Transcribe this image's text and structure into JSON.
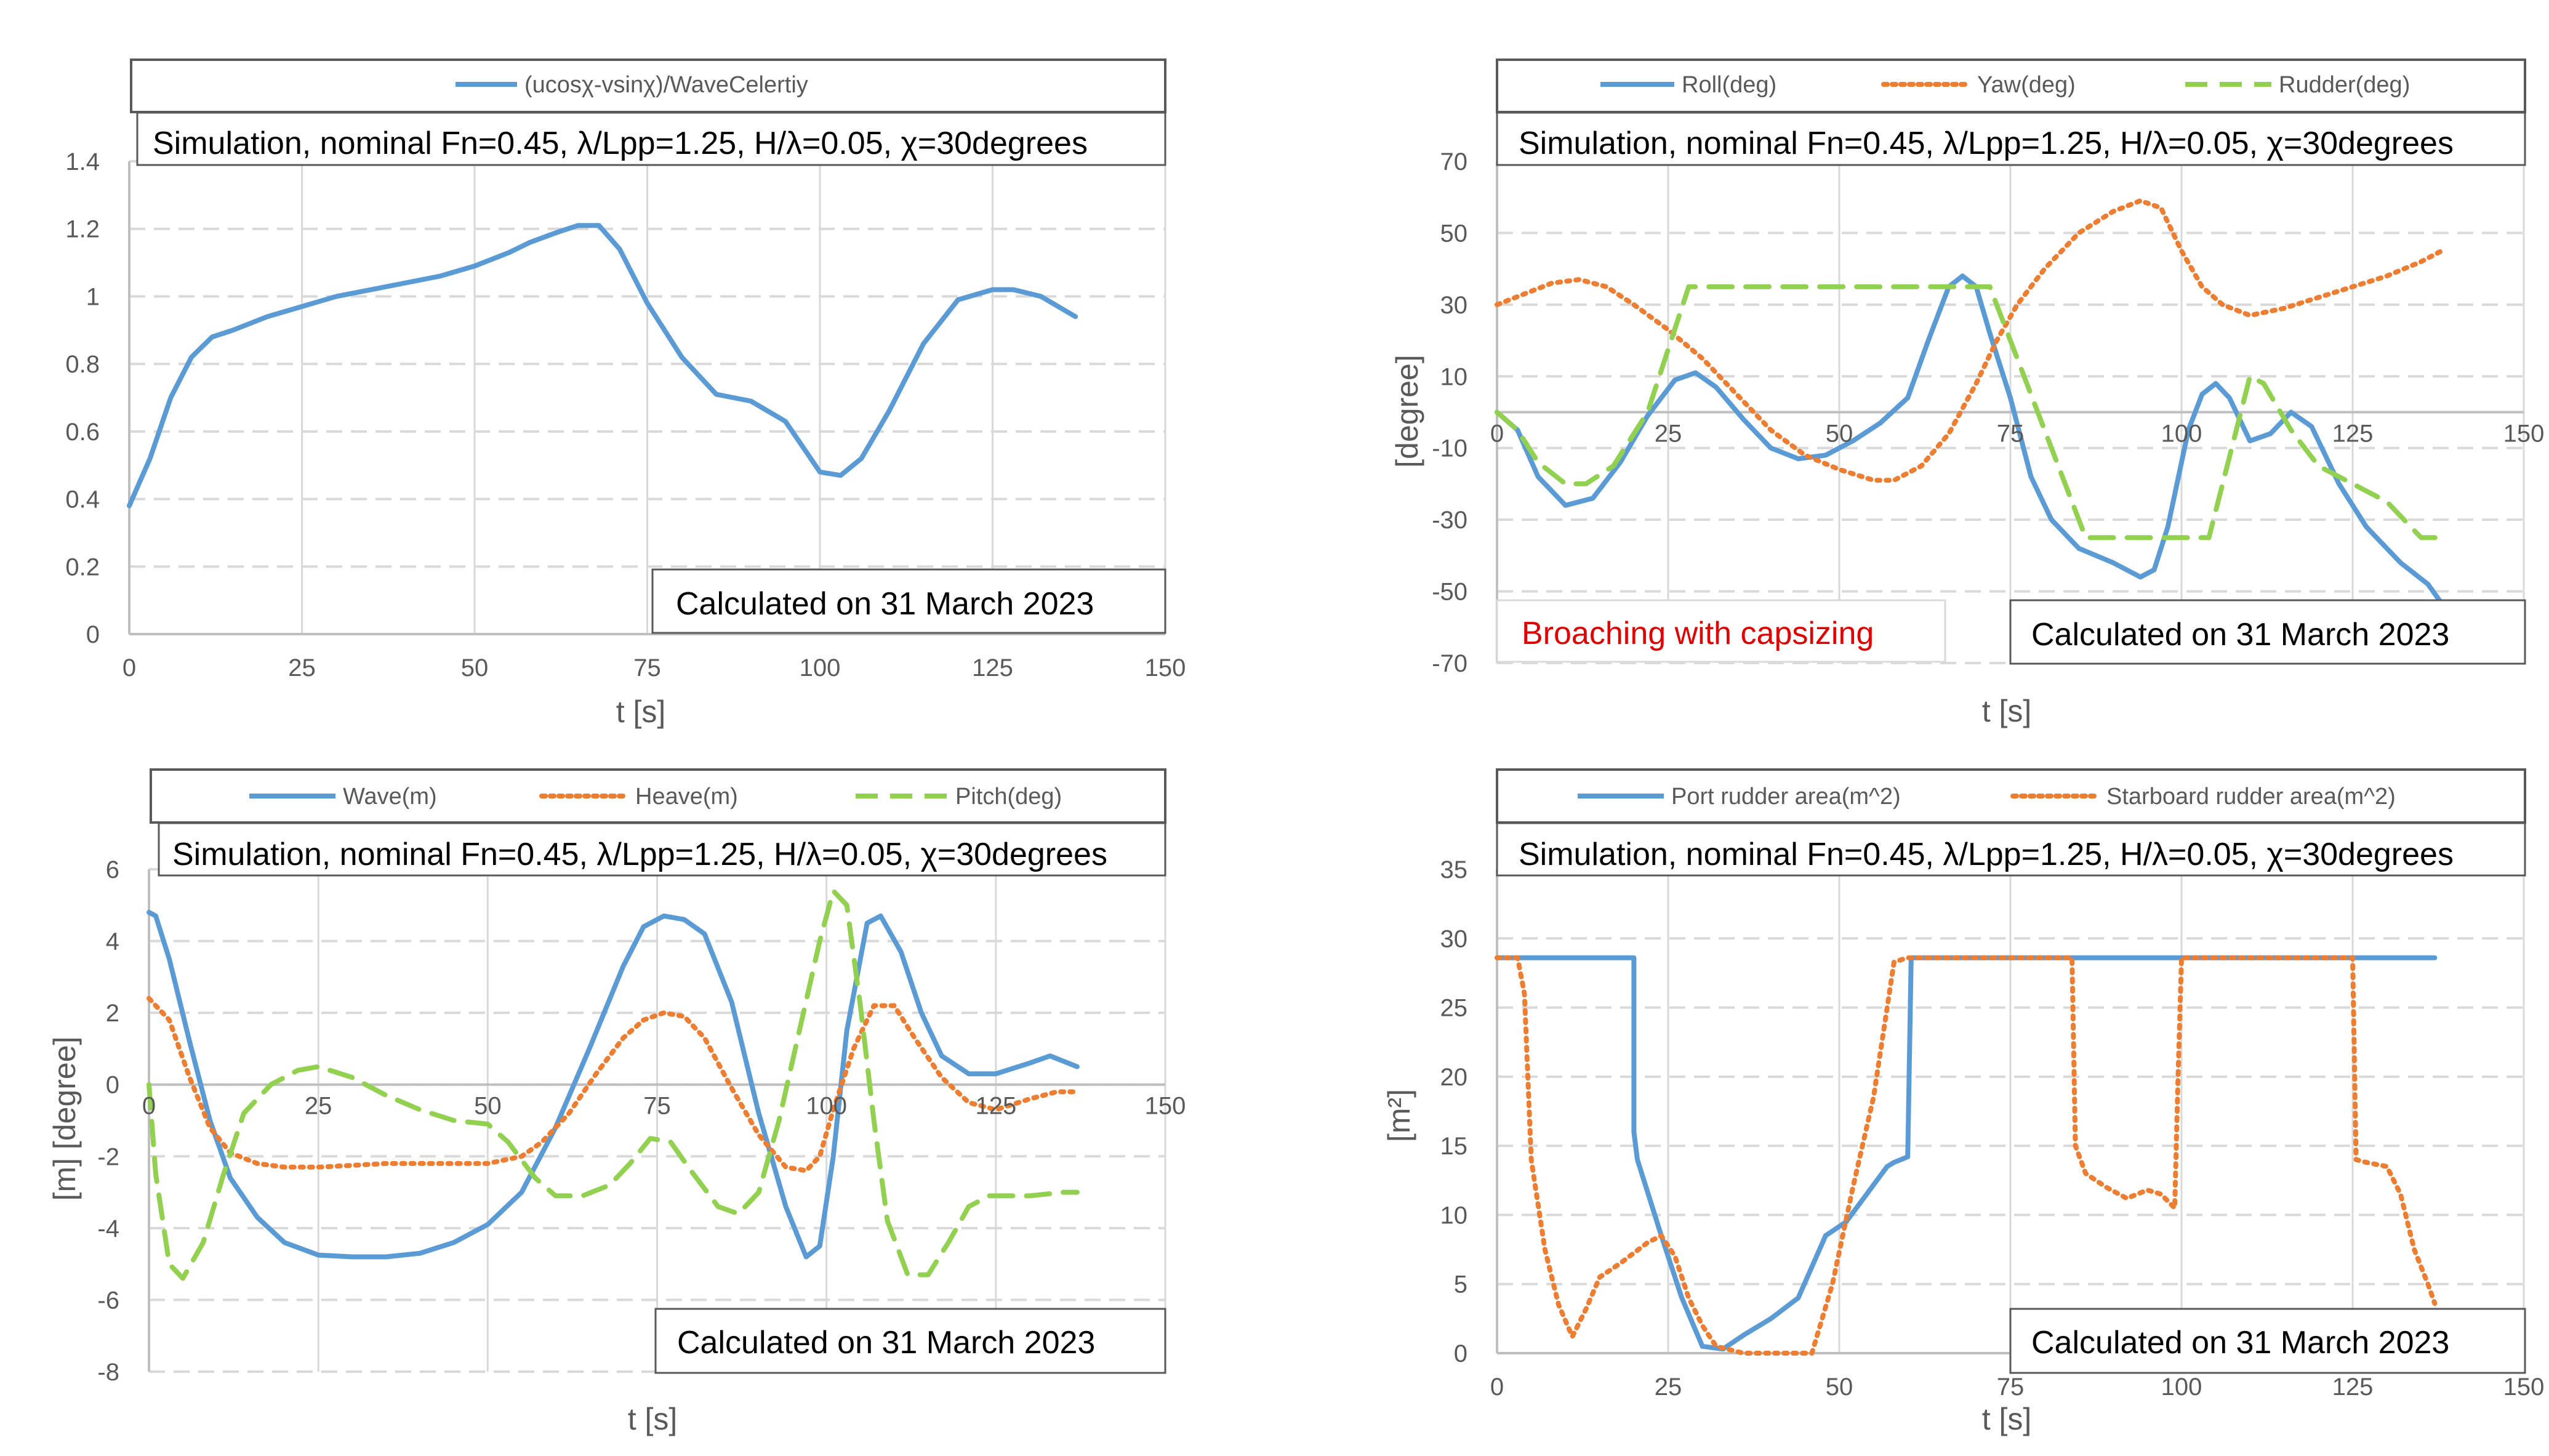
{
  "chart_data": [
    {
      "id": "c1",
      "type": "line",
      "title": "",
      "subtitle": "Simulation, nominal Fn=0.45, λ/Lpp=1.25, H/λ=0.05, χ=30degrees",
      "xlabel": "t [s]",
      "ylabel": "",
      "xlim": [
        0,
        150
      ],
      "ylim": [
        0,
        1.4
      ],
      "xticks": [
        0,
        25,
        50,
        75,
        100,
        125,
        150
      ],
      "yticks": [
        0,
        0.2,
        0.4,
        0.6,
        0.8,
        1,
        1.2,
        1.4
      ],
      "ytick_labels": [
        "0",
        "0.2",
        "0.4",
        "0.6",
        "0.8",
        "1",
        "1.2",
        "1.4"
      ],
      "x_axis_at_zero": false,
      "legend": "top",
      "annotation": "Calculated on 31 March 2023",
      "series": [
        {
          "name": "(ucosχ-vsinχ)/WaveCelertiy",
          "color": "#5b9bd5",
          "dash": "solid",
          "x": [
            0,
            3,
            6,
            9,
            12,
            15,
            20,
            25,
            30,
            35,
            40,
            45,
            50,
            55,
            58,
            62,
            65,
            68,
            71,
            75,
            80,
            85,
            90,
            95,
            98,
            100,
            103,
            106,
            110,
            115,
            120,
            125,
            128,
            132,
            137
          ],
          "y": [
            0.38,
            0.52,
            0.7,
            0.82,
            0.88,
            0.9,
            0.94,
            0.97,
            1.0,
            1.02,
            1.04,
            1.06,
            1.09,
            1.13,
            1.16,
            1.19,
            1.21,
            1.21,
            1.14,
            0.98,
            0.82,
            0.71,
            0.69,
            0.63,
            0.54,
            0.48,
            0.47,
            0.52,
            0.66,
            0.86,
            0.99,
            1.02,
            1.02,
            1.0,
            0.94
          ]
        }
      ]
    },
    {
      "id": "c2",
      "type": "line",
      "title": "",
      "subtitle": "Simulation, nominal Fn=0.45, λ/Lpp=1.25, H/λ=0.05, χ=30degrees",
      "xlabel": "t [s]",
      "ylabel": "[degree]",
      "xlim": [
        0,
        150
      ],
      "ylim": [
        -70,
        70
      ],
      "xticks": [
        0,
        25,
        50,
        75,
        100,
        125,
        150
      ],
      "yticks": [
        -70,
        -50,
        -30,
        -10,
        10,
        30,
        50,
        70
      ],
      "ytick_labels": [
        "-70",
        "-50",
        "-30",
        "-10",
        "10",
        "30",
        "50",
        "70"
      ],
      "x_axis_at_zero": true,
      "legend": "top",
      "annotation": "Calculated on 31 March 2023",
      "note": "Broaching with capsizing",
      "series": [
        {
          "name": "Roll(deg)",
          "color": "#5b9bd5",
          "dash": "solid",
          "x": [
            0,
            3,
            6,
            10,
            14,
            18,
            22,
            26,
            29,
            32,
            36,
            40,
            44,
            48,
            52,
            56,
            60,
            63,
            66,
            68,
            70,
            72,
            75,
            78,
            81,
            85,
            90,
            94,
            96,
            98,
            101,
            103,
            105,
            107,
            110,
            113,
            116,
            119,
            123,
            127,
            132,
            136,
            139
          ],
          "y": [
            0,
            -5,
            -18,
            -26,
            -24,
            -14,
            -1,
            9,
            11,
            7,
            -2,
            -10,
            -13,
            -12,
            -8,
            -3,
            4,
            20,
            35,
            38,
            35,
            22,
            4,
            -18,
            -30,
            -38,
            -42,
            -46,
            -44,
            -32,
            -5,
            5,
            8,
            4,
            -8,
            -6,
            0,
            -4,
            -20,
            -32,
            -42,
            -48,
            -56
          ]
        },
        {
          "name": "Yaw(deg)",
          "color": "#ed7d31",
          "dash": "dotted",
          "x": [
            0,
            4,
            8,
            12,
            16,
            20,
            25,
            30,
            35,
            40,
            45,
            50,
            55,
            58,
            62,
            66,
            70,
            73,
            76,
            80,
            85,
            90,
            94,
            97,
            100,
            103,
            106,
            110,
            115,
            120,
            125,
            130,
            135,
            138
          ],
          "y": [
            30,
            33,
            36,
            37,
            35,
            30,
            23,
            15,
            5,
            -5,
            -12,
            -16,
            -19,
            -19,
            -15,
            -6,
            8,
            20,
            30,
            40,
            50,
            56,
            59,
            57,
            45,
            35,
            30,
            27,
            29,
            32,
            35,
            38,
            42,
            45
          ]
        },
        {
          "name": "Rudder(deg)",
          "color": "#92d050",
          "dash": "dashed",
          "x": [
            0,
            3,
            6,
            10,
            13,
            17,
            22,
            28,
            72,
            77,
            82,
            86,
            90,
            95,
            100,
            104,
            108,
            110,
            112,
            116,
            120,
            125,
            130,
            135,
            138
          ],
          "y": [
            0,
            -5,
            -14,
            -20,
            -20,
            -15,
            0,
            35,
            35,
            10,
            -15,
            -35,
            -35,
            -35,
            -35,
            -35,
            -5,
            10,
            8,
            -5,
            -15,
            -20,
            -25,
            -35,
            -35
          ]
        }
      ]
    },
    {
      "id": "c3",
      "type": "line",
      "title": "",
      "subtitle": "Simulation, nominal Fn=0.45, λ/Lpp=1.25, H/λ=0.05, χ=30degrees",
      "xlabel": "t [s]",
      "ylabel": "[m] [degree]",
      "xlim": [
        0,
        150
      ],
      "ylim": [
        -8,
        6
      ],
      "xticks": [
        0,
        25,
        50,
        75,
        100,
        125,
        150
      ],
      "yticks": [
        -8,
        -6,
        -4,
        -2,
        0,
        2,
        4,
        6
      ],
      "ytick_labels": [
        "-8",
        "-6",
        "-4",
        "-2",
        "0",
        "2",
        "4",
        "6"
      ],
      "x_axis_at_zero": true,
      "legend": "top",
      "annotation": "Calculated on 31 March 2023",
      "series": [
        {
          "name": "Wave(m)",
          "color": "#5b9bd5",
          "dash": "solid",
          "x": [
            0,
            1,
            3,
            6,
            9,
            12,
            16,
            20,
            25,
            30,
            35,
            40,
            45,
            50,
            55,
            60,
            65,
            70,
            73,
            76,
            79,
            82,
            86,
            90,
            94,
            97,
            99,
            101,
            103,
            106,
            108,
            111,
            114,
            117,
            121,
            125,
            130,
            133,
            137
          ],
          "y": [
            4.8,
            4.7,
            3.5,
            1.2,
            -1.0,
            -2.6,
            -3.7,
            -4.4,
            -4.75,
            -4.8,
            -4.8,
            -4.7,
            -4.4,
            -3.9,
            -3.0,
            -1.2,
            1.0,
            3.3,
            4.4,
            4.7,
            4.6,
            4.2,
            2.3,
            -0.8,
            -3.4,
            -4.8,
            -4.5,
            -2.0,
            1.5,
            4.5,
            4.7,
            3.7,
            2.0,
            0.8,
            0.3,
            0.3,
            0.6,
            0.8,
            0.5
          ]
        },
        {
          "name": "Heave(m)",
          "color": "#ed7d31",
          "dash": "dotted",
          "x": [
            0,
            3,
            6,
            9,
            12,
            16,
            20,
            25,
            30,
            35,
            40,
            45,
            50,
            55,
            58,
            62,
            66,
            70,
            73,
            76,
            79,
            82,
            86,
            90,
            94,
            97,
            99,
            101,
            104,
            107,
            110,
            113,
            117,
            121,
            125,
            130,
            134,
            137
          ],
          "y": [
            2.4,
            1.8,
            0.2,
            -1.2,
            -1.9,
            -2.2,
            -2.3,
            -2.3,
            -2.25,
            -2.2,
            -2.2,
            -2.2,
            -2.2,
            -2.0,
            -1.6,
            -0.8,
            0.3,
            1.3,
            1.8,
            2.0,
            1.9,
            1.3,
            -0.1,
            -1.4,
            -2.3,
            -2.4,
            -2.0,
            -0.7,
            1.0,
            2.2,
            2.2,
            1.3,
            0.2,
            -0.5,
            -0.7,
            -0.4,
            -0.2,
            -0.2
          ]
        },
        {
          "name": "Pitch(deg)",
          "color": "#92d050",
          "dash": "dashed",
          "x": [
            0,
            1,
            3,
            5,
            8,
            11,
            14,
            18,
            22,
            25,
            30,
            35,
            40,
            45,
            50,
            53,
            57,
            60,
            64,
            68,
            71,
            74,
            77,
            80,
            84,
            87,
            90,
            93,
            96,
            99,
            101,
            103,
            105,
            107,
            109,
            112,
            115,
            118,
            121,
            124,
            127,
            130,
            135,
            137
          ],
          "y": [
            0,
            -2.5,
            -5.0,
            -5.4,
            -4.4,
            -2.5,
            -0.8,
            0.0,
            0.4,
            0.5,
            0.2,
            -0.3,
            -0.7,
            -1.0,
            -1.1,
            -1.6,
            -2.6,
            -3.1,
            -3.1,
            -2.8,
            -2.2,
            -1.5,
            -1.6,
            -2.4,
            -3.4,
            -3.6,
            -3.0,
            -1.0,
            1.5,
            4.0,
            5.4,
            5.0,
            2.2,
            -1.0,
            -3.8,
            -5.3,
            -5.3,
            -4.4,
            -3.4,
            -3.1,
            -3.1,
            -3.1,
            -3.0,
            -3.0
          ]
        }
      ]
    },
    {
      "id": "c4",
      "type": "line",
      "title": "",
      "subtitle": "Simulation, nominal Fn=0.45, λ/Lpp=1.25, H/λ=0.05, χ=30degrees",
      "xlabel": "t [s]",
      "ylabel": "[m²]",
      "xlim": [
        0,
        150
      ],
      "ylim": [
        0,
        35
      ],
      "xticks": [
        0,
        25,
        50,
        75,
        100,
        125,
        150
      ],
      "yticks": [
        0,
        5,
        10,
        15,
        20,
        25,
        30,
        35
      ],
      "ytick_labels": [
        "0",
        "5",
        "10",
        "15",
        "20",
        "25",
        "30",
        "35"
      ],
      "x_axis_at_zero": false,
      "legend": "top",
      "annotation": "Calculated on 31 March 2023",
      "series": [
        {
          "name": "Port rudder area(m^2)",
          "color": "#5b9bd5",
          "dash": "solid",
          "x": [
            0,
            20,
            20,
            20.5,
            24,
            27,
            30,
            33,
            36,
            40,
            44,
            48,
            51,
            54,
            57,
            58,
            59,
            60,
            60.5,
            137
          ],
          "y": [
            28.6,
            28.6,
            16.0,
            14.0,
            8.5,
            4.0,
            0.5,
            0.3,
            1.3,
            2.5,
            4.0,
            8.5,
            9.5,
            11.5,
            13.5,
            13.8,
            14.0,
            14.2,
            28.6,
            28.6
          ]
        },
        {
          "name": "Starboard rudder area(m^2)",
          "color": "#ed7d31",
          "dash": "dotted",
          "x": [
            0,
            3,
            4,
            5,
            7,
            9,
            11,
            13,
            15,
            18,
            22,
            24,
            26,
            28,
            30,
            32,
            36,
            41,
            44,
            46,
            49,
            52,
            55,
            57,
            58,
            60,
            84,
            84.5,
            86,
            89,
            92,
            95,
            97,
            99,
            99.5,
            100,
            125,
            125.5,
            127,
            130,
            132,
            134,
            136,
            137
          ],
          "y": [
            28.6,
            28.6,
            26.0,
            14.0,
            7.5,
            3.5,
            1.2,
            3.2,
            5.5,
            6.5,
            8.0,
            8.5,
            7.0,
            4.0,
            2.0,
            0.5,
            0,
            0,
            0,
            0,
            5.0,
            12.0,
            18.5,
            25.0,
            28.3,
            28.6,
            28.6,
            15.0,
            13.0,
            12.0,
            11.2,
            11.8,
            11.5,
            10.5,
            20.0,
            28.6,
            28.6,
            14.0,
            13.8,
            13.5,
            11.5,
            7.5,
            5.0,
            3.6
          ]
        }
      ]
    }
  ]
}
